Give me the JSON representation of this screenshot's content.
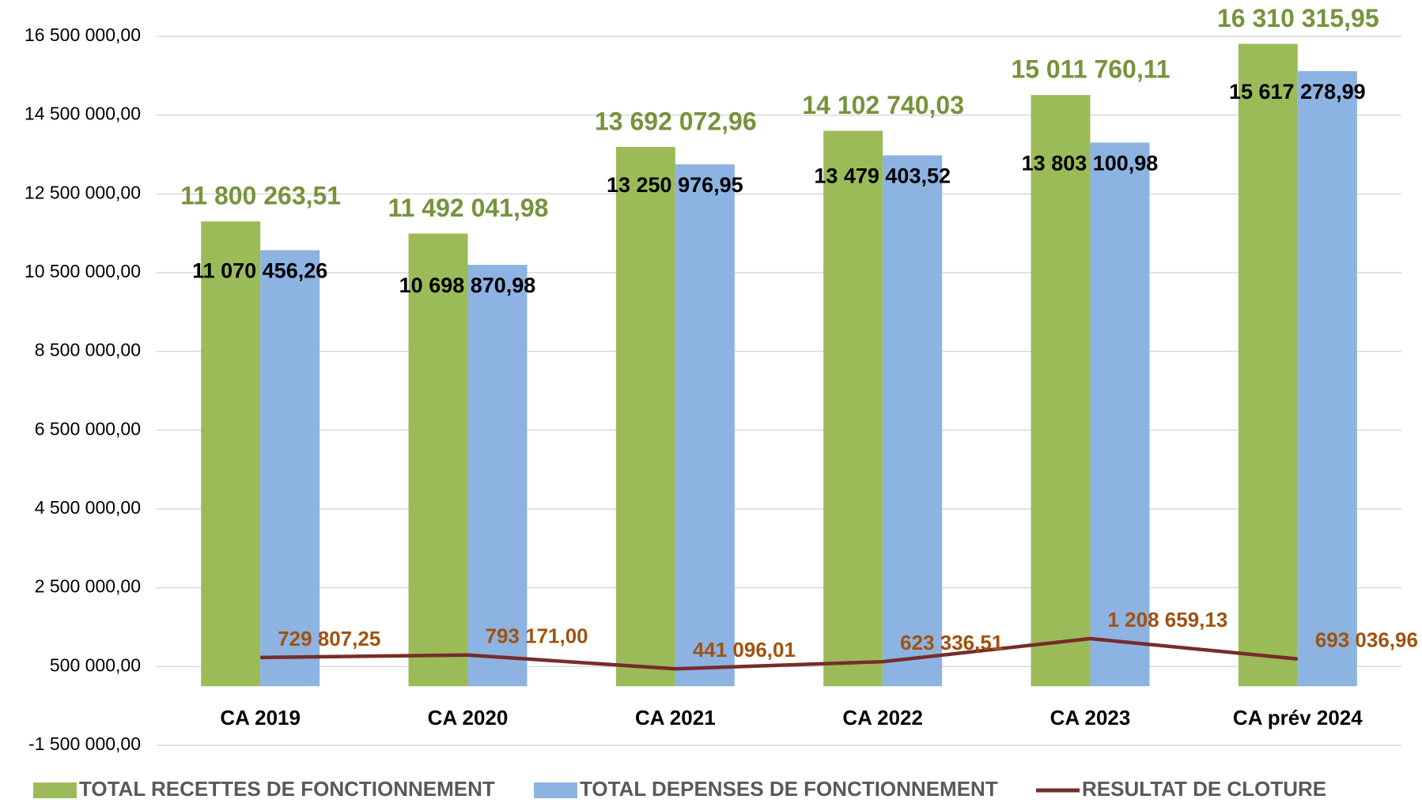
{
  "chart_data": {
    "type": "bar",
    "categories": [
      "CA 2019",
      "CA 2020",
      "CA 2021",
      "CA 2022",
      "CA 2023",
      "CA prév 2024"
    ],
    "series": [
      {
        "name": "TOTAL RECETTES DE FONCTIONNEMENT",
        "type": "bar",
        "color": "#9bbb59",
        "label_color": "#77933c",
        "values": [
          11800263.51,
          11492041.98,
          13692072.96,
          14102740.03,
          15011760.11,
          16310315.95
        ],
        "value_labels": [
          "11 800 263,51",
          "11 492 041,98",
          "13 692 072,96",
          "14 102 740,03",
          "15 011 760,11",
          "16 310 315,95"
        ]
      },
      {
        "name": "TOTAL DEPENSES DE FONCTIONNEMENT",
        "type": "bar",
        "color": "#8db3e2",
        "label_color": "#000000",
        "values": [
          11070456.26,
          10698870.98,
          13250976.95,
          13479403.52,
          13803100.98,
          15617278.99
        ],
        "value_labels": [
          "11 070 456,26",
          "10 698 870,98",
          "13 250 976,95",
          "13 479 403,52",
          "13 803 100,98",
          "15 617 278,99"
        ]
      },
      {
        "name": "RESULTAT DE CLOTURE",
        "type": "line",
        "color": "#772c2a",
        "label_color": "#a0520f",
        "values": [
          729807.25,
          793171.0,
          441096.01,
          623336.51,
          1208659.13,
          693036.96
        ],
        "value_labels": [
          "729 807,25",
          "793 171,00",
          "441 096,01",
          "623 336,51",
          "1 208 659,13",
          "693 036,96"
        ]
      }
    ],
    "ylim": [
      -1500000,
      16500000
    ],
    "yticks": [
      {
        "value": -1500000,
        "label": "-1 500 000,00"
      },
      {
        "value": 500000,
        "label": "500 000,00"
      },
      {
        "value": 2500000,
        "label": "2 500 000,00"
      },
      {
        "value": 4500000,
        "label": "4 500 000,00"
      },
      {
        "value": 6500000,
        "label": "6 500 000,00"
      },
      {
        "value": 8500000,
        "label": "8 500 000,00"
      },
      {
        "value": 10500000,
        "label": "10 500 000,00"
      },
      {
        "value": 12500000,
        "label": "12 500 000,00"
      },
      {
        "value": 14500000,
        "label": "14 500 000,00"
      },
      {
        "value": 16500000,
        "label": "16 500 000,00"
      }
    ],
    "grid": true,
    "legend": "bottom"
  }
}
